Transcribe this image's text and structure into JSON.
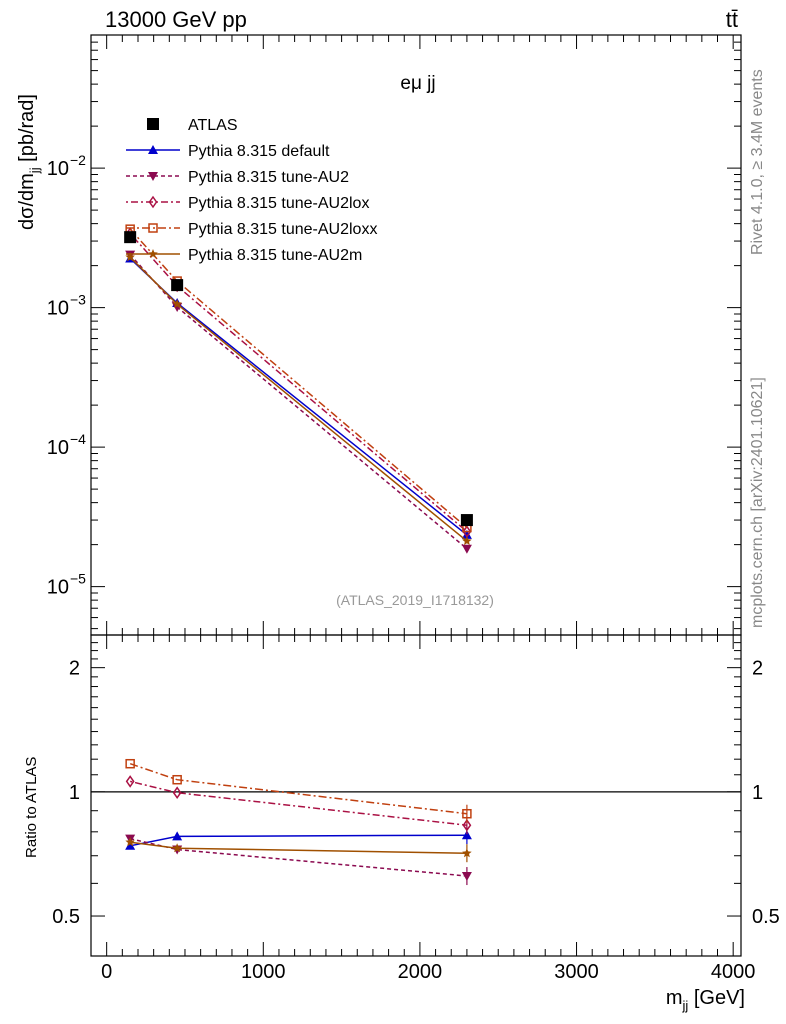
{
  "header": {
    "energy_label": "13000 GeV pp",
    "process_label": "tt̄",
    "panel_label": "eμ jj",
    "rivet_label": "Rivet 4.1.0, ≥ 3.4M events",
    "mcplots_label": "mcplots.cern.ch [arXiv:2401.10621]",
    "analysis_label": "(ATLAS_2019_I1718132)"
  },
  "axes": {
    "ylabel_top": "dσ/dm",
    "ylabel_top_sub": "jj",
    "ylabel_top_unit": " [pb/rad]",
    "ylabel_bottom": "Ratio to ATLAS",
    "xlabel": "m",
    "xlabel_sub": "jj",
    "xlabel_unit": " [GeV]",
    "top_ticks": [
      {
        "base": "10",
        "exp": "−2",
        "value": 0.01
      },
      {
        "base": "10",
        "exp": "−3",
        "value": 0.001
      },
      {
        "base": "10",
        "exp": "−4",
        "value": 0.0001
      },
      {
        "base": "10",
        "exp": "−5",
        "value": 1e-05
      }
    ],
    "ratio_ticks": [
      "2",
      "1",
      "0.5"
    ],
    "x_ticks": [
      "0",
      "1000",
      "2000",
      "3000",
      "4000"
    ]
  },
  "legend": [
    {
      "label": "ATLAS"
    },
    {
      "label": "Pythia 8.315 default"
    },
    {
      "label": "Pythia 8.315 tune-AU2"
    },
    {
      "label": "Pythia 8.315 tune-AU2lox"
    },
    {
      "label": "Pythia 8.315 tune-AU2loxx"
    },
    {
      "label": "Pythia 8.315 tune-AU2m"
    }
  ],
  "chart_data": {
    "type": "line",
    "title": "eμ jj",
    "xlabel": "m_jj [GeV]",
    "ylabel": "dσ/dm_jj [pb/rad]",
    "ratio_ylabel": "Ratio to ATLAS",
    "x": [
      150,
      450,
      2300
    ],
    "xlim": [
      -100,
      4050
    ],
    "ylim": [
      4.5e-06,
      0.09
    ],
    "yscale": "log",
    "ratio_ylim": [
      0.4,
      2.4
    ],
    "ratio_yscale": "log",
    "series": [
      {
        "name": "ATLAS",
        "color": "#000000",
        "marker": "square-filled",
        "values": [
          0.0032,
          0.00145,
          3e-05
        ]
      },
      {
        "name": "Pythia 8.315 default",
        "color": "#0000cc",
        "marker": "triangle-up",
        "dash": "",
        "values": [
          0.00225,
          0.00108,
          2.35e-05
        ],
        "ratio": [
          0.74,
          0.78,
          0.785
        ]
      },
      {
        "name": "Pythia 8.315 tune-AU2",
        "color": "#8b0a50",
        "marker": "triangle-down",
        "dash": "4,3",
        "values": [
          0.0024,
          0.00101,
          1.87e-05
        ],
        "ratio": [
          0.77,
          0.725,
          0.625
        ]
      },
      {
        "name": "Pythia 8.315 tune-AU2lox",
        "color": "#aa1144",
        "marker": "diamond-open",
        "dash": "2,3,7,3",
        "values": [
          0.0034,
          0.00143,
          2.48e-05
        ],
        "ratio": [
          1.06,
          0.995,
          0.83
        ]
      },
      {
        "name": "Pythia 8.315 tune-AU2loxx",
        "color": "#c04010",
        "marker": "square-open",
        "dash": "8,3,2,3",
        "values": [
          0.00365,
          0.00155,
          2.65e-05
        ],
        "ratio": [
          1.17,
          1.07,
          0.885
        ]
      },
      {
        "name": "Pythia 8.315 tune-AU2m",
        "color": "#a05000",
        "marker": "star",
        "dash": "",
        "values": [
          0.0023,
          0.00106,
          2.12e-05
        ],
        "ratio": [
          0.755,
          0.73,
          0.71
        ]
      }
    ]
  }
}
